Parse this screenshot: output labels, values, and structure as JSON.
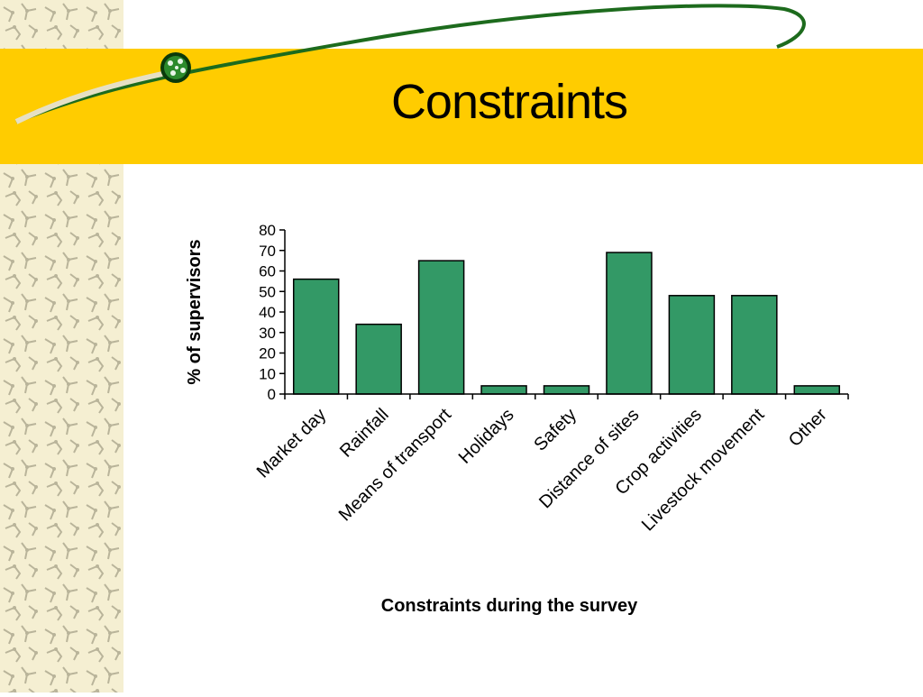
{
  "slide": {
    "title": "Constraints"
  },
  "colors": {
    "band": "#ffcc00",
    "bar_fill": "#339966",
    "swoosh": "#1d6b1d",
    "pattern_bg": "#f5efd2"
  },
  "icons": [
    "cell-logo-icon"
  ],
  "chart_data": {
    "type": "bar",
    "categories": [
      "Market day",
      "Rainfall",
      "Means of transport",
      "Holidays",
      "Safety",
      "Distance of sites",
      "Crop activities",
      "Livestock movement",
      "Other"
    ],
    "values": [
      56,
      34,
      65,
      4,
      4,
      69,
      48,
      48,
      4
    ],
    "xlabel": "Constraints during the survey",
    "ylabel": "% of supervisors",
    "ylim": [
      0,
      80
    ],
    "yticks": [
      0,
      10,
      20,
      30,
      40,
      50,
      60,
      70,
      80
    ],
    "grid": false,
    "legend": "none"
  }
}
